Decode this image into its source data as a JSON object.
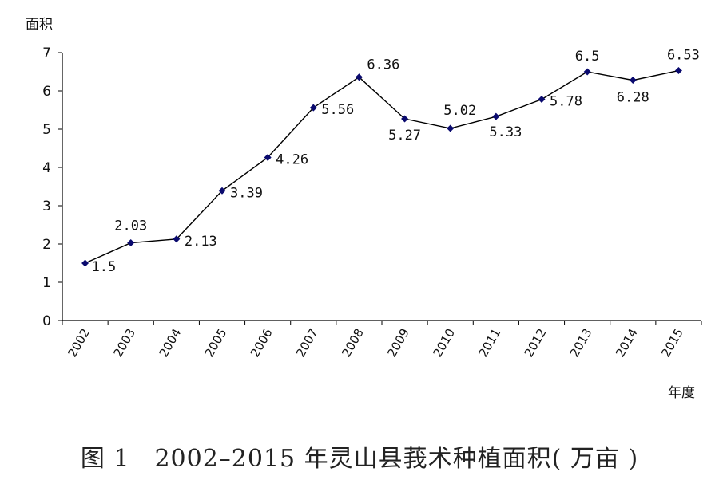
{
  "chart_data": {
    "type": "line",
    "x": [
      "2002",
      "2003",
      "2004",
      "2005",
      "2006",
      "2007",
      "2008",
      "2009",
      "2010",
      "2011",
      "2012",
      "2013",
      "2014",
      "2015"
    ],
    "series": [
      {
        "values": [
          1.5,
          2.03,
          2.13,
          3.39,
          4.26,
          5.56,
          6.36,
          5.27,
          5.02,
          5.33,
          5.78,
          6.5,
          6.28,
          6.53
        ]
      }
    ],
    "data_labels": [
      "1.5",
      "2.03",
      "2.13",
      "3.39",
      "4.26",
      "5.56",
      "6.36",
      "5.27",
      "5.02",
      "5.33",
      "5.78",
      "6.5",
      "6.28",
      "6.53"
    ],
    "ylabel": "面积",
    "xlabel": "年度",
    "ylim": [
      0,
      7
    ],
    "yticks": [
      "0",
      "1",
      "2",
      "3",
      "4",
      "5",
      "6",
      "7"
    ],
    "grid": false,
    "legend": "none",
    "marker": "diamond",
    "line_color": "#000000",
    "marker_color": "#0a0a6e"
  },
  "caption": "图 1　2002–2015 年灵山县莪术种植面积( 万亩 )"
}
